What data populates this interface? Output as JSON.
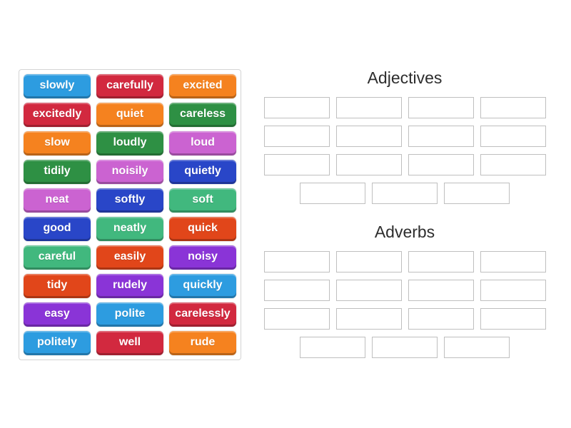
{
  "page": {
    "background": "#ffffff"
  },
  "palette": {
    "blue": "#2d9ce0",
    "crimson": "#d2293f",
    "orange": "#f5821f",
    "green": "#2e9044",
    "orchid": "#cb63d1",
    "dark_blue": "#2946c8",
    "emerald": "#41b87e",
    "orange_red": "#e1461a",
    "violet": "#8a34d7"
  },
  "tiles": [
    {
      "label": "slowly",
      "color": "blue"
    },
    {
      "label": "carefully",
      "color": "crimson"
    },
    {
      "label": "excited",
      "color": "orange"
    },
    {
      "label": "excitedly",
      "color": "crimson"
    },
    {
      "label": "quiet",
      "color": "orange"
    },
    {
      "label": "careless",
      "color": "green"
    },
    {
      "label": "slow",
      "color": "orange"
    },
    {
      "label": "loudly",
      "color": "green"
    },
    {
      "label": "loud",
      "color": "orchid"
    },
    {
      "label": "tidily",
      "color": "green"
    },
    {
      "label": "noisily",
      "color": "orchid"
    },
    {
      "label": "quietly",
      "color": "dark_blue"
    },
    {
      "label": "neat",
      "color": "orchid"
    },
    {
      "label": "softly",
      "color": "dark_blue"
    },
    {
      "label": "soft",
      "color": "emerald"
    },
    {
      "label": "good",
      "color": "dark_blue"
    },
    {
      "label": "neatly",
      "color": "emerald"
    },
    {
      "label": "quick",
      "color": "orange_red"
    },
    {
      "label": "careful",
      "color": "emerald"
    },
    {
      "label": "easily",
      "color": "orange_red"
    },
    {
      "label": "noisy",
      "color": "violet"
    },
    {
      "label": "tidy",
      "color": "orange_red"
    },
    {
      "label": "rudely",
      "color": "violet"
    },
    {
      "label": "quickly",
      "color": "blue"
    },
    {
      "label": "easy",
      "color": "violet"
    },
    {
      "label": "polite",
      "color": "blue"
    },
    {
      "label": "carelessly",
      "color": "crimson"
    },
    {
      "label": "politely",
      "color": "blue"
    },
    {
      "label": "well",
      "color": "crimson"
    },
    {
      "label": "rude",
      "color": "orange"
    }
  ],
  "groups": [
    {
      "title": "Adjectives",
      "slot_rows": [
        4,
        4,
        4,
        3
      ]
    },
    {
      "title": "Adverbs",
      "slot_rows": [
        4,
        4,
        4,
        3
      ]
    }
  ]
}
